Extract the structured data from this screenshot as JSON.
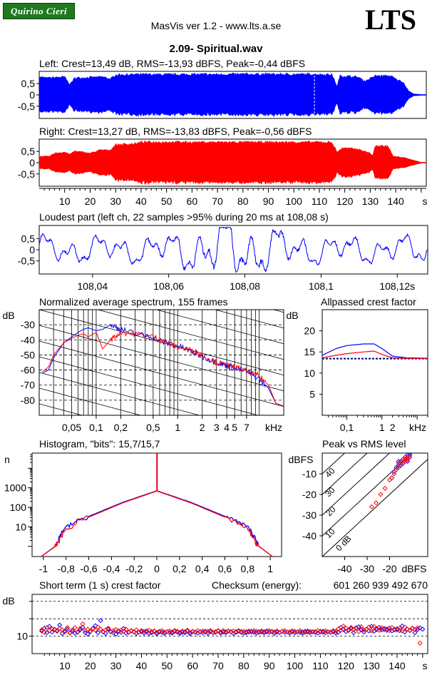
{
  "header": {
    "badge": "Quirino Cieri",
    "app": "MasVis ver 1.2 - www.lts.a.se",
    "logo": "LTS",
    "file": "2.09- Spiritual.wav"
  },
  "colors": {
    "left": "#0000ff",
    "right": "#ff0000",
    "axis": "#000000",
    "limit": "#000080"
  },
  "waveforms": {
    "left_title": "Left: Crest=13,49 dB, RMS=-13,93 dBFS, Peak=-0,44 dBFS",
    "right_title": "Right: Crest=13,27 dB, RMS=-13,83 dBFS, Peak=-0,56 dBFS",
    "y_ticks": [
      "0,5",
      "0",
      "-0,5"
    ],
    "x_ticks": [
      "10",
      "20",
      "30",
      "40",
      "50",
      "60",
      "70",
      "80",
      "90",
      "100",
      "110",
      "120",
      "130",
      "140"
    ],
    "x_unit": "s",
    "marker_s": 108.08,
    "left_envelope": [
      [
        0,
        0.85
      ],
      [
        3,
        0.8
      ],
      [
        10,
        0.85
      ],
      [
        12,
        0.5
      ],
      [
        14,
        0.8
      ],
      [
        25,
        0.85
      ],
      [
        28,
        0.75
      ],
      [
        30,
        0.95
      ],
      [
        40,
        0.97
      ],
      [
        50,
        0.96
      ],
      [
        60,
        0.97
      ],
      [
        70,
        0.97
      ],
      [
        80,
        0.98
      ],
      [
        90,
        0.98
      ],
      [
        100,
        0.97
      ],
      [
        108,
        0.98
      ],
      [
        110,
        0.97
      ],
      [
        115,
        0.96
      ],
      [
        117,
        0.4
      ],
      [
        118,
        0.9
      ],
      [
        125,
        0.85
      ],
      [
        128,
        0.65
      ],
      [
        132,
        0.9
      ],
      [
        138,
        0.9
      ],
      [
        140,
        0.75
      ],
      [
        143,
        0.6
      ],
      [
        145,
        0.2
      ],
      [
        147,
        0.05
      ],
      [
        150,
        0.02
      ]
    ],
    "right_envelope": [
      [
        0,
        0.3
      ],
      [
        4,
        0.3
      ],
      [
        6,
        0.45
      ],
      [
        10,
        0.5
      ],
      [
        12,
        0.4
      ],
      [
        14,
        0.55
      ],
      [
        20,
        0.45
      ],
      [
        24,
        0.6
      ],
      [
        28,
        0.6
      ],
      [
        30,
        0.85
      ],
      [
        38,
        0.9
      ],
      [
        40,
        0.97
      ],
      [
        50,
        0.98
      ],
      [
        60,
        0.97
      ],
      [
        70,
        0.97
      ],
      [
        80,
        0.97
      ],
      [
        90,
        0.97
      ],
      [
        100,
        0.97
      ],
      [
        110,
        0.97
      ],
      [
        115,
        0.96
      ],
      [
        117,
        0.5
      ],
      [
        119,
        0.7
      ],
      [
        125,
        0.65
      ],
      [
        130,
        0.45
      ],
      [
        131,
        0.35
      ],
      [
        132,
        0.8
      ],
      [
        137,
        0.78
      ],
      [
        139,
        0.3
      ],
      [
        143,
        0.25
      ],
      [
        150,
        0.02
      ]
    ]
  },
  "loudest": {
    "title": "Loudest part (left  ch, 22 samples >95% during 20 ms at 108,08 s)",
    "y_ticks": [
      "0,5",
      "0",
      "-0,5"
    ],
    "x_ticks": [
      "108,04",
      "108,06",
      "108,08",
      "108,1",
      "108,12s"
    ]
  },
  "spectrum": {
    "title": "Normalized average spectrum, 155 frames",
    "unit": "dB",
    "y_ticks": [
      "-30",
      "-40",
      "-50",
      "-60",
      "-70",
      "-80"
    ],
    "x_ticks": [
      "0,05",
      "0,1",
      "0,2",
      "0,5",
      "1",
      "2",
      "3",
      "4",
      "5",
      "7",
      "kHz"
    ],
    "left": [
      [
        0.022,
        -62
      ],
      [
        0.026,
        -60
      ],
      [
        0.03,
        -52
      ],
      [
        0.04,
        -42
      ],
      [
        0.05,
        -38
      ],
      [
        0.06,
        -35
      ],
      [
        0.07,
        -33
      ],
      [
        0.08,
        -32
      ],
      [
        0.1,
        -34
      ],
      [
        0.12,
        -33
      ],
      [
        0.15,
        -30
      ],
      [
        0.2,
        -33
      ],
      [
        0.3,
        -36
      ],
      [
        0.5,
        -38
      ],
      [
        0.7,
        -42
      ],
      [
        1,
        -44
      ],
      [
        1.5,
        -48
      ],
      [
        2,
        -51
      ],
      [
        3,
        -55
      ],
      [
        4,
        -57
      ],
      [
        5,
        -59
      ],
      [
        7,
        -61
      ],
      [
        10,
        -66
      ],
      [
        13,
        -72
      ],
      [
        16,
        -82
      ],
      [
        20,
        -84
      ]
    ],
    "right": [
      [
        0.022,
        -61
      ],
      [
        0.026,
        -58
      ],
      [
        0.03,
        -50
      ],
      [
        0.04,
        -42
      ],
      [
        0.05,
        -39
      ],
      [
        0.06,
        -37
      ],
      [
        0.07,
        -36
      ],
      [
        0.08,
        -38
      ],
      [
        0.1,
        -35
      ],
      [
        0.12,
        -46
      ],
      [
        0.15,
        -40
      ],
      [
        0.2,
        -35
      ],
      [
        0.3,
        -36
      ],
      [
        0.5,
        -38
      ],
      [
        0.7,
        -41
      ],
      [
        1,
        -45
      ],
      [
        1.5,
        -47
      ],
      [
        2,
        -50
      ],
      [
        3,
        -55
      ],
      [
        4,
        -57
      ],
      [
        5,
        -58
      ],
      [
        7,
        -61
      ],
      [
        10,
        -64
      ],
      [
        13,
        -70
      ],
      [
        16,
        -82
      ],
      [
        20,
        -84
      ]
    ]
  },
  "allpass": {
    "title": "Allpassed crest factor",
    "unit": "dB",
    "y_ticks": [
      "20",
      "15",
      "10",
      "5"
    ],
    "x_ticks": [
      "0,1",
      "1",
      "2",
      "kHz"
    ],
    "limit_db": 13.4,
    "left": [
      [
        0.02,
        14.2
      ],
      [
        0.05,
        15.8
      ],
      [
        0.1,
        16.5
      ],
      [
        0.3,
        16.9
      ],
      [
        0.6,
        16.9
      ],
      [
        1,
        15.8
      ],
      [
        2,
        14
      ],
      [
        5,
        13.6
      ],
      [
        20,
        13.5
      ]
    ],
    "right": [
      [
        0.02,
        13.6
      ],
      [
        0.05,
        14.2
      ],
      [
        0.1,
        14.6
      ],
      [
        0.3,
        15
      ],
      [
        0.6,
        15.2
      ],
      [
        1,
        14.4
      ],
      [
        2,
        13.6
      ],
      [
        5,
        13.5
      ],
      [
        20,
        13.4
      ]
    ]
  },
  "histogram": {
    "title": "Histogram, \"bits\": 15,7/15,7",
    "unit": "n",
    "y_ticks": [
      "1000",
      "100",
      "10"
    ],
    "x_ticks": [
      "-1",
      "-0,8",
      "-0,6",
      "-0,4",
      "-0,2",
      "0",
      "0,2",
      "0,4",
      "0,6",
      "0,8",
      "1"
    ],
    "left": [
      [
        -0.9,
        1
      ],
      [
        -0.86,
        3
      ],
      [
        -0.82,
        8
      ],
      [
        -0.7,
        20
      ],
      [
        -0.5,
        60
      ],
      [
        -0.3,
        180
      ],
      [
        -0.1,
        450
      ],
      [
        0,
        700
      ],
      [
        0.1,
        450
      ],
      [
        0.3,
        180
      ],
      [
        0.5,
        60
      ],
      [
        0.7,
        20
      ],
      [
        0.82,
        8
      ],
      [
        0.86,
        3
      ],
      [
        0.9,
        1
      ]
    ],
    "right": [
      [
        -0.9,
        1
      ],
      [
        -0.86,
        2
      ],
      [
        -0.82,
        6
      ],
      [
        -0.7,
        18
      ],
      [
        -0.5,
        55
      ],
      [
        -0.3,
        170
      ],
      [
        -0.1,
        430
      ],
      [
        0,
        680
      ],
      [
        0.1,
        430
      ],
      [
        0.3,
        170
      ],
      [
        0.5,
        55
      ],
      [
        0.7,
        18
      ],
      [
        0.82,
        6
      ],
      [
        0.86,
        2
      ],
      [
        0.9,
        1
      ]
    ]
  },
  "peak_rms": {
    "title": "Peak vs RMS level",
    "y_unit": "dBFS",
    "x_unit": "dBFS",
    "y_ticks": [
      "-10",
      "-20",
      "-30",
      "-40"
    ],
    "x_ticks": [
      "-40",
      "-30",
      "-20"
    ],
    "diag_labels": [
      "40",
      "30",
      "20",
      "10",
      "0 dB"
    ],
    "left_points": [
      [
        -13,
        -2
      ],
      [
        -12,
        -2
      ],
      [
        -14,
        -3
      ],
      [
        -11,
        -1
      ],
      [
        -16,
        -6
      ],
      [
        -15,
        -4
      ],
      [
        -13,
        -3
      ],
      [
        -12,
        -1
      ],
      [
        -17,
        -7
      ],
      [
        -14,
        -5
      ],
      [
        -19,
        -12
      ],
      [
        -13,
        -2
      ],
      [
        -12,
        -3
      ],
      [
        -16,
        -4
      ],
      [
        -18,
        -9
      ],
      [
        -12,
        -4
      ],
      [
        -11,
        -2
      ],
      [
        -15,
        -6
      ]
    ],
    "right_points": [
      [
        -13,
        -2
      ],
      [
        -12,
        -3
      ],
      [
        -14,
        -4
      ],
      [
        -11,
        -2
      ],
      [
        -16,
        -5
      ],
      [
        -22,
        -17
      ],
      [
        -24,
        -20
      ],
      [
        -26,
        -24
      ],
      [
        -28,
        -26
      ],
      [
        -20,
        -13
      ],
      [
        -18,
        -10
      ],
      [
        -17,
        -8
      ],
      [
        -15,
        -5
      ],
      [
        -14,
        -3
      ],
      [
        -13,
        -4
      ],
      [
        -12,
        -2
      ],
      [
        -16,
        -7
      ],
      [
        -19,
        -12
      ]
    ]
  },
  "short_crest": {
    "title": "Short term (1 s) crest factor",
    "checksum_label": "Checksum (energy):",
    "checksum_value": "601 260 939 492 670",
    "unit": "dB",
    "y_ticks": [
      "10"
    ],
    "x_ticks": [
      "10",
      "20",
      "30",
      "40",
      "50",
      "60",
      "70",
      "80",
      "90",
      "100",
      "110",
      "120",
      "130",
      "140"
    ],
    "x_unit": "s",
    "left": [
      11.5,
      12.3,
      11,
      12.8,
      11.2,
      12,
      11.6,
      13.2,
      10.8,
      11.5,
      12,
      11,
      11.4,
      10.9,
      11.2,
      11.8,
      12.5,
      11,
      10.6,
      11.3,
      12.2,
      13,
      11,
      14.5,
      11.2,
      10.8,
      12,
      11.3,
      11,
      10.6,
      11.5,
      11.1,
      12.2,
      10.9,
      11.1,
      11.6,
      11.2,
      10.8,
      11.1,
      11.3,
      10.9,
      11.5,
      10.8,
      11,
      11.4,
      10.7,
      11.2,
      11.1,
      10.8,
      11.3,
      11,
      10.9,
      11.4,
      11.2,
      10.8,
      11.1,
      11,
      11.5,
      10.7,
      11.3,
      11.1,
      10.9,
      11.2,
      11,
      11.4,
      10.8,
      11.3,
      11,
      11.1,
      11.6,
      10.9,
      11.2,
      11,
      11.5,
      11.3,
      10.8,
      11.1,
      11.4,
      11.3,
      10.9,
      11,
      11.2,
      11.4,
      11.1,
      10.9,
      11.3,
      11.2,
      11,
      11.5,
      11.1,
      11.3,
      10.8,
      11.2,
      11,
      11.4,
      11.1,
      11.2,
      10.9,
      11.3,
      11,
      11.2,
      11.1,
      10.9,
      11.4,
      11.2,
      11,
      11.3,
      11.1,
      10.9,
      11.2,
      11.4,
      11,
      11.2,
      11.1,
      11.3,
      10.9,
      11.1,
      12.5,
      12,
      11.3,
      11.8,
      12.2,
      11,
      12.4,
      12.7,
      11.9,
      11.2,
      12,
      11.5,
      12.8,
      11.4,
      11.9,
      12.5,
      11.8,
      12.2,
      11.7,
      12.3,
      11.5,
      11.8,
      12.1,
      11.6,
      12.9,
      11.2,
      12,
      11.6,
      12.3,
      11,
      11.9,
      12.4,
      12
    ],
    "right": [
      11.8,
      11.1,
      12.5,
      11.6,
      12.1,
      11.9,
      11.4,
      12.2,
      11.8,
      11.2,
      12.5,
      10.9,
      11.8,
      12.4,
      11.1,
      12.2,
      13.5,
      11.6,
      12,
      11.4,
      12.1,
      11.7,
      12.6,
      12,
      11.3,
      11.8,
      12.3,
      11.2,
      11.6,
      11.9,
      11.3,
      11.7,
      11.4,
      12,
      11.2,
      11.5,
      11.3,
      11.8,
      11.1,
      11.6,
      11.4,
      11.2,
      11.7,
      11.3,
      11.5,
      11.1,
      11.4,
      11.6,
      11.2,
      11.3,
      11.5,
      11.2,
      11.6,
      11.4,
      11.1,
      11.5,
      11.3,
      11.7,
      11.1,
      11.4,
      11.2,
      11.6,
      11.3,
      11.5,
      11.2,
      11.4,
      11.6,
      11.1,
      11.3,
      11.5,
      11.2,
      11.6,
      11.3,
      11.4,
      11.2,
      11.5,
      11.3,
      11.6,
      11.1,
      11.4,
      11.3,
      11.5,
      11.2,
      11.6,
      11.4,
      11.1,
      11.5,
      11.3,
      11.2,
      11.6,
      11.4,
      11.3,
      11.5,
      11.1,
      11.4,
      11.6,
      11.2,
      11.3,
      11.5,
      11.4,
      11.2,
      11.6,
      11.3,
      11.1,
      11.5,
      11.4,
      11.2,
      11.3,
      11.6,
      11.4,
      11.1,
      11.5,
      11.3,
      11.2,
      11.6,
      11.4,
      12.1,
      11.7,
      12.9,
      12.3,
      11.6,
      12.5,
      11.9,
      12.2,
      11.3,
      12.7,
      11.8,
      12,
      12.6,
      11.5,
      12.8,
      12.2,
      11.7,
      12.4,
      11.9,
      12.1,
      11.6,
      12.5,
      12,
      11.8,
      12.3,
      11.5,
      12.6,
      12,
      11.7,
      12.2,
      11.9,
      12.4,
      8
    ]
  },
  "chart_data": [
    {
      "type": "area",
      "title": "Left: Crest=13,49 dB, RMS=-13,93 dBFS, Peak=-0,44 dBFS",
      "xlabel": "s",
      "ylim": [
        -1,
        1
      ],
      "xlim": [
        0,
        152
      ]
    },
    {
      "type": "area",
      "title": "Right: Crest=13,27 dB, RMS=-13,83 dBFS, Peak=-0,56 dBFS",
      "xlabel": "s",
      "ylim": [
        -1,
        1
      ],
      "xlim": [
        0,
        152
      ]
    },
    {
      "type": "line",
      "title": "Loudest part (left  ch, 22 samples >95% during 20 ms at 108,08 s)",
      "xlim": [
        108.026,
        108.128
      ],
      "ylim": [
        -1,
        1
      ]
    },
    {
      "type": "line",
      "title": "Normalized average spectrum, 155 frames",
      "ylabel": "dB",
      "xlabel": "kHz",
      "ylim": [
        -90,
        -20
      ],
      "log_x": true
    },
    {
      "type": "line",
      "title": "Allpassed crest factor",
      "ylabel": "dB",
      "xlabel": "kHz",
      "ylim": [
        0,
        25
      ],
      "log_x": true
    },
    {
      "type": "line",
      "title": "Histogram, \"bits\": 15,7/15,7",
      "ylabel": "n",
      "xlim": [
        -1.1,
        1.1
      ],
      "log_y": true
    },
    {
      "type": "scatter",
      "title": "Peak vs RMS level",
      "ylabel": "dBFS",
      "xlabel": "dBFS",
      "xlim": [
        -50,
        -3
      ],
      "ylim": [
        -50,
        0
      ]
    },
    {
      "type": "scatter",
      "title": "Short term (1 s) crest factor",
      "ylabel": "dB",
      "xlabel": "s",
      "xlim": [
        0,
        152
      ]
    }
  ]
}
